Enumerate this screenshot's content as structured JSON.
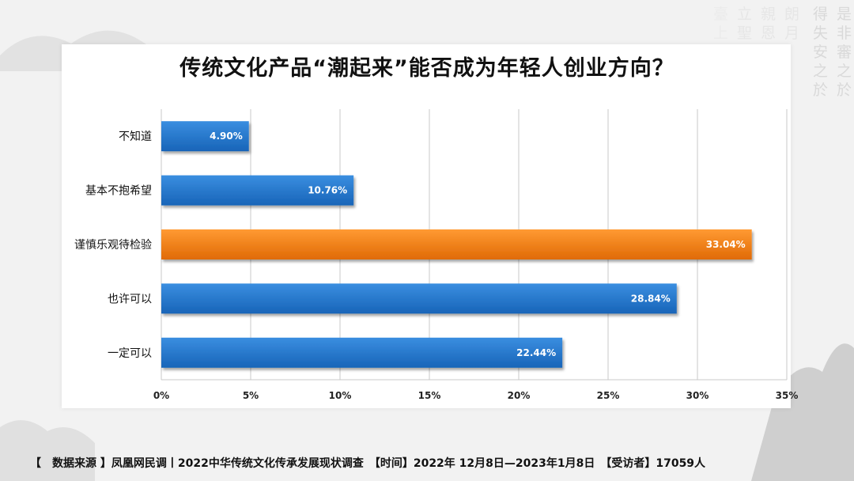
{
  "chart_data": {
    "type": "bar",
    "orientation": "horizontal",
    "title": "传统文化产品“潮起来”能否成为年轻人创业方向？",
    "categories": [
      "不知道",
      "基本不抱希望",
      "谨慎乐观待检验",
      "也许可以",
      "一定可以"
    ],
    "values": [
      4.9,
      10.76,
      33.04,
      28.84,
      22.44
    ],
    "value_labels": [
      "4.90%",
      "10.76%",
      "33.04%",
      "28.84%",
      "22.44%"
    ],
    "xlim": [
      0,
      35
    ],
    "xticks": [
      0,
      5,
      10,
      15,
      20,
      25,
      30,
      35
    ],
    "xtick_labels": [
      "0%",
      "5%",
      "10%",
      "15%",
      "20%",
      "25%",
      "30%",
      "35%"
    ],
    "xlabel": "",
    "ylabel": "",
    "grid": true,
    "highlight_index": 2,
    "colors": {
      "default": "#1f6fc5",
      "highlight": "#ee7a12"
    }
  },
  "footer": {
    "text": "【　数据来源 】凤凰网民调丨2022中华传统文化传承发展现状调查　【时间】2022年 12月8日—2023年1月8日　【受访者】17059人"
  }
}
